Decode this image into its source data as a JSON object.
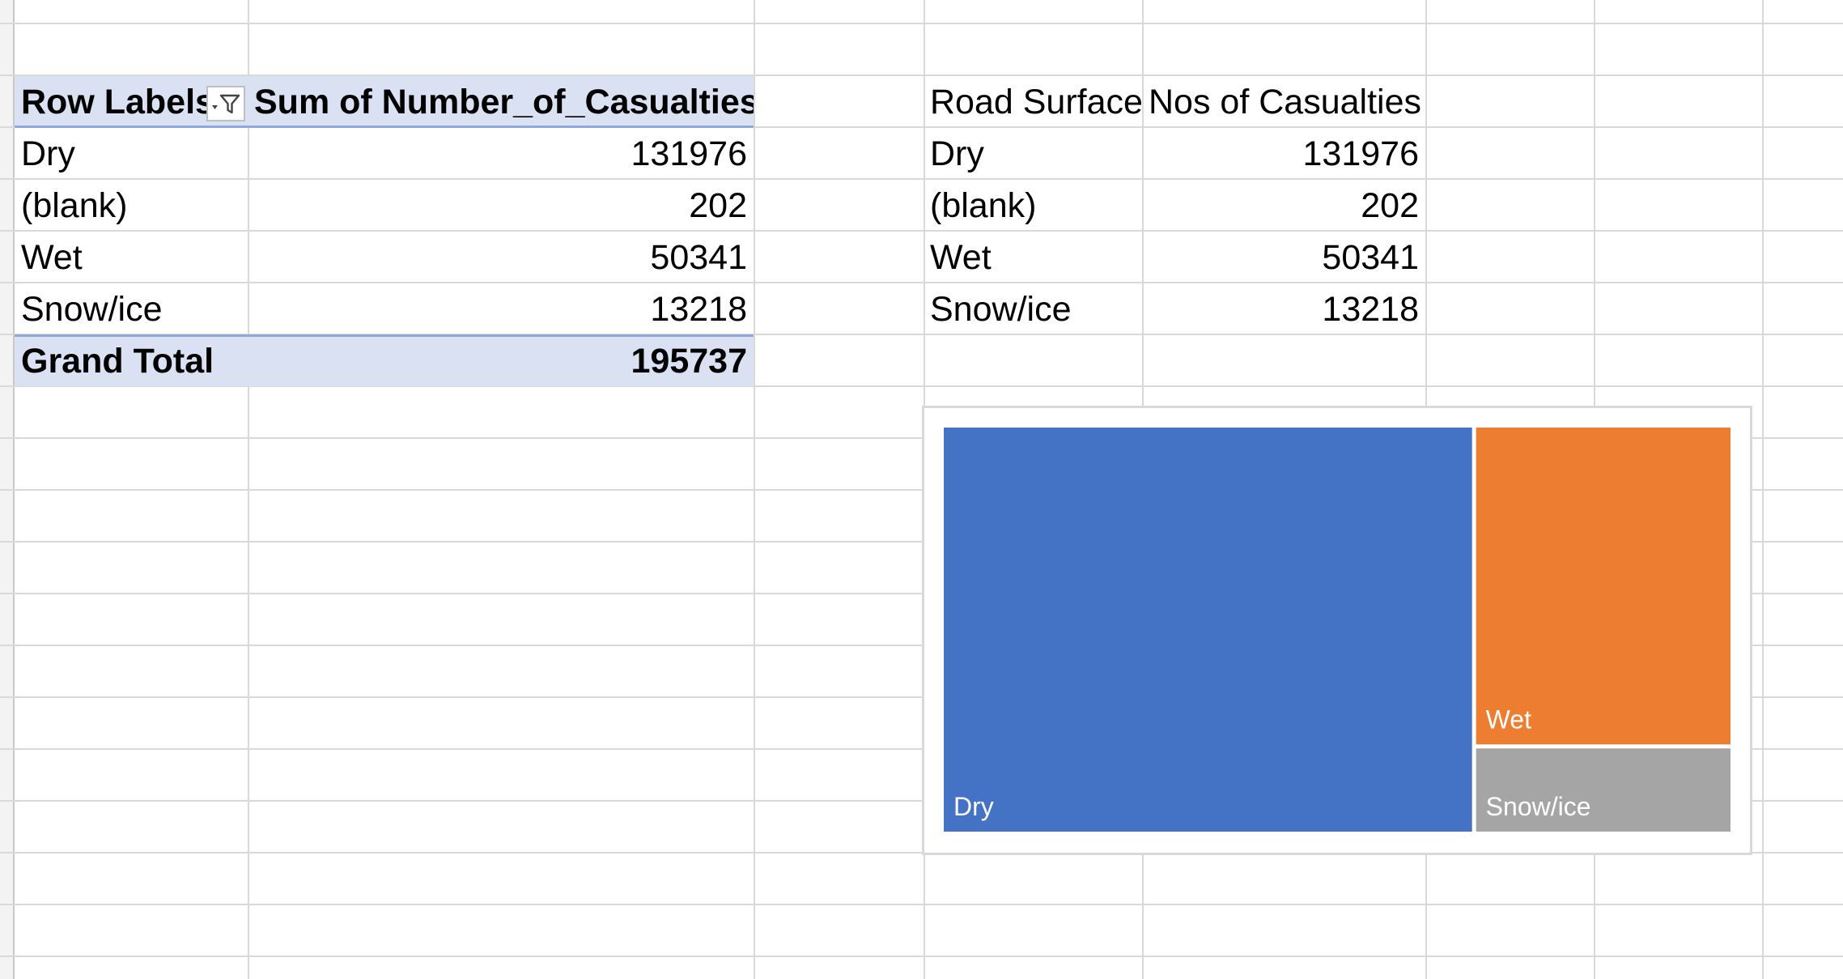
{
  "pivot_table": {
    "header": {
      "row_labels": "Row Labels",
      "value_field": "Sum of Number_of_Casualties"
    },
    "rows": [
      {
        "label": "Dry",
        "value": "131976"
      },
      {
        "label": "(blank)",
        "value": "202"
      },
      {
        "label": "Wet",
        "value": "50341"
      },
      {
        "label": "Snow/ice",
        "value": "13218"
      }
    ],
    "grand_total": {
      "label": "Grand Total",
      "value": "195737"
    },
    "band_color": "#d9e1f2"
  },
  "copy_table": {
    "header": {
      "col1": "Road Surface",
      "col2": "Nos of Casualties"
    },
    "rows": [
      {
        "label": "Dry",
        "value": "131976"
      },
      {
        "label": "(blank)",
        "value": "202"
      },
      {
        "label": "Wet",
        "value": "50341"
      },
      {
        "label": "Snow/ice",
        "value": "13218"
      }
    ]
  },
  "chart_data": {
    "type": "treemap",
    "categories": [
      "Dry",
      "Wet",
      "Snow/ice"
    ],
    "values": [
      131976,
      50341,
      13218
    ],
    "colors": [
      "#4472c4",
      "#ed7d31",
      "#a5a5a5"
    ]
  }
}
